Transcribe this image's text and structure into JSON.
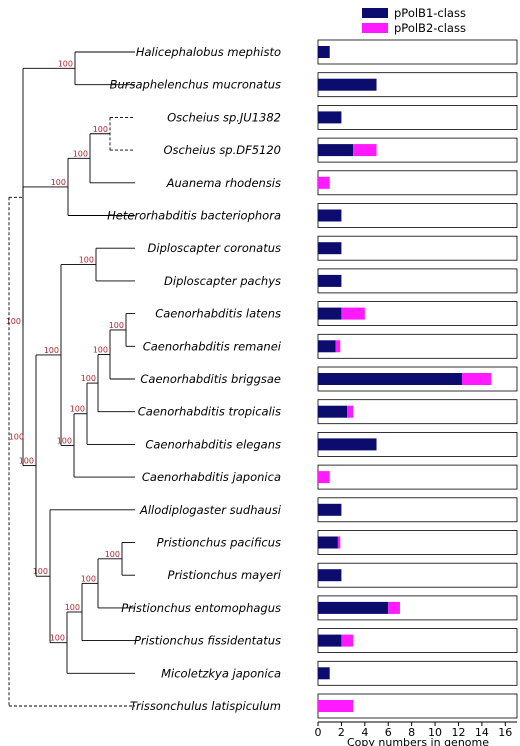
{
  "chart_data": {
    "type": "bar",
    "orientation": "horizontal",
    "stacked": true,
    "xlabel": "Copy numbers in genome",
    "xlim": [
      0,
      17
    ],
    "xticks": [
      0,
      2,
      4,
      6,
      8,
      10,
      12,
      14,
      16
    ],
    "legend_position": "top-right",
    "categories": [
      "Halicephalobus mephisto",
      "Bursaphelenchus mucronatus",
      "Oscheius sp.JU1382",
      "Oscheius sp.DF5120",
      "Auanema rhodensis",
      "Heterorhabditis bacteriophora",
      "Diploscapter coronatus",
      "Diploscapter pachys",
      "Caenorhabditis latens",
      "Caenorhabditis remanei",
      "Caenorhabditis briggsae",
      "Caenorhabditis tropicalis",
      "Caenorhabditis elegans",
      "Caenorhabditis japonica",
      "Allodiplogaster sudhausi",
      "Pristionchus pacificus",
      "Pristionchus mayeri",
      "Pristionchus entomophagus",
      "Pristionchus fissidentatus",
      "Micoletzkya japonica",
      "Trissonchulus latispiculum"
    ],
    "series": [
      {
        "name": "pPolB1-class",
        "color": "#0c0c6e",
        "values": [
          1,
          5,
          2,
          3,
          0,
          2,
          2,
          2,
          2,
          1.5,
          12.3,
          2.5,
          5,
          0,
          2,
          1.7,
          2,
          6,
          2,
          1,
          0
        ]
      },
      {
        "name": "pPolB2-class",
        "color": "#ff1aff",
        "values": [
          0,
          0,
          0,
          2,
          1,
          0,
          0,
          0,
          2,
          0.4,
          2.5,
          0.5,
          0,
          1,
          0,
          0.2,
          0,
          1,
          1,
          0,
          3
        ]
      }
    ],
    "tree": {
      "bootstrap_value": "100",
      "bootstrap_color": "#b3262f"
    }
  }
}
